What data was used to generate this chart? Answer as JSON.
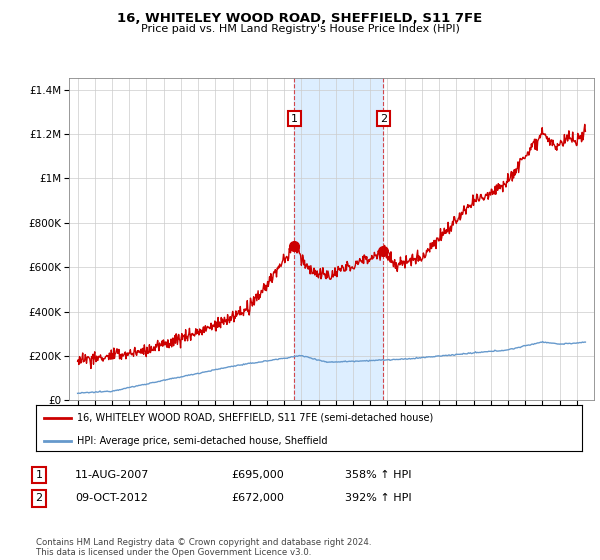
{
  "title": "16, WHITELEY WOOD ROAD, SHEFFIELD, S11 7FE",
  "subtitle": "Price paid vs. HM Land Registry's House Price Index (HPI)",
  "legend_entry1": "16, WHITELEY WOOD ROAD, SHEFFIELD, S11 7FE (semi-detached house)",
  "legend_entry2": "HPI: Average price, semi-detached house, Sheffield",
  "annotation1_date": "11-AUG-2007",
  "annotation1_price": "£695,000",
  "annotation1_hpi": "358% ↑ HPI",
  "annotation2_date": "09-OCT-2012",
  "annotation2_price": "£672,000",
  "annotation2_hpi": "392% ↑ HPI",
  "footer": "Contains HM Land Registry data © Crown copyright and database right 2024.\nThis data is licensed under the Open Government Licence v3.0.",
  "red_color": "#cc0000",
  "blue_color": "#6699cc",
  "shading_color": "#ddeeff",
  "ylim_min": 0,
  "ylim_max": 1450000,
  "sale1_year": 2007.6,
  "sale1_price": 695000,
  "sale2_year": 2012.77,
  "sale2_price": 672000,
  "xmin": 1994.5,
  "xmax": 2025.0
}
